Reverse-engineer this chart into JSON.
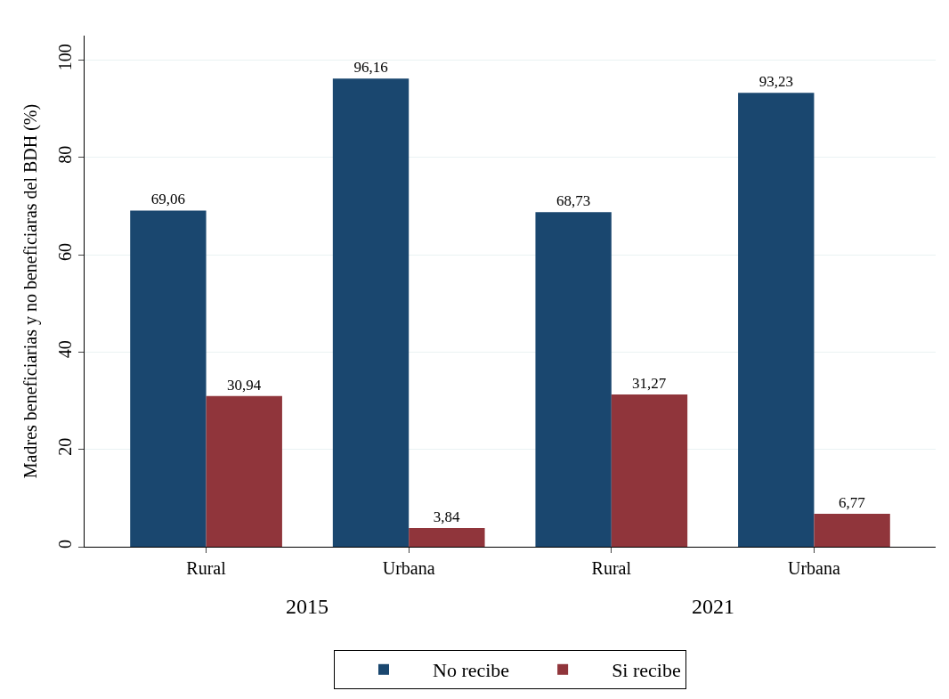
{
  "chart_data": {
    "type": "bar",
    "ylabel": "Madres beneficiarias y no beneficiaras del BDH (%)",
    "categories": [
      "Rural",
      "Urbana",
      "Rural",
      "Urbana"
    ],
    "series": [
      {
        "name": "No recibe",
        "color": "#1a476f",
        "values": [
          69.06,
          96.16,
          68.73,
          93.23
        ],
        "value_labels": [
          "69,06",
          "96,16",
          "68,73",
          "93,23"
        ]
      },
      {
        "name": "Si recibe",
        "color": "#90353b",
        "values": [
          30.94,
          3.84,
          31.27,
          6.77
        ],
        "value_labels": [
          "30,94",
          "3,84",
          "31,27",
          "6,77"
        ]
      }
    ],
    "annotations": [
      "2015",
      "2021"
    ],
    "ylim": [
      0,
      105
    ],
    "yticks": [
      0,
      20,
      40,
      60,
      80,
      100
    ],
    "grid": "y",
    "legend": "bottom"
  }
}
